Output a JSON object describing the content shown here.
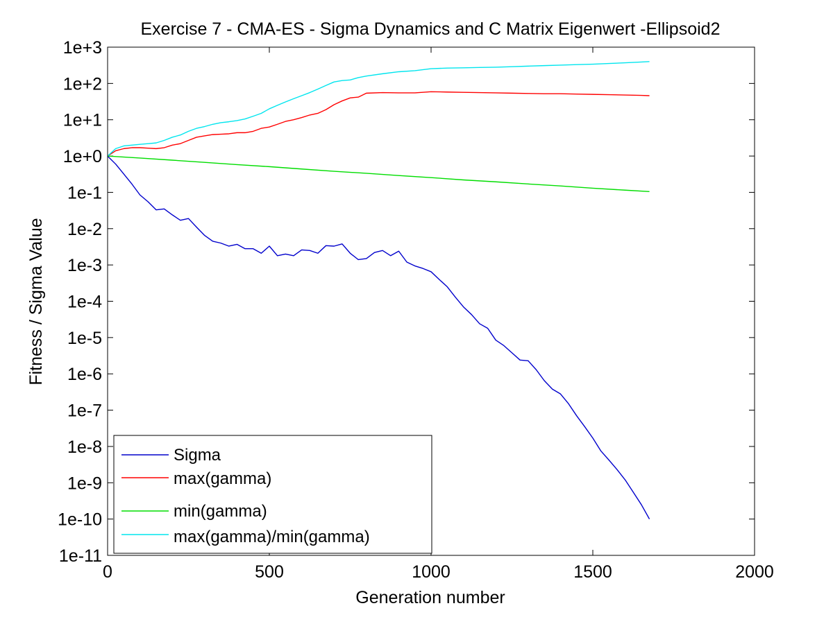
{
  "chart_data": {
    "type": "line",
    "title": "Exercise 7 - CMA-ES - Sigma Dynamics and C Matrix Eigenwert -Ellipsoid2",
    "xlabel": "Generation number",
    "ylabel": "Fitness / Sigma Value",
    "xlim": [
      0,
      2000
    ],
    "ylim": [
      1e-11,
      1000
    ],
    "yscale": "log",
    "grid": false,
    "legend_position": "bottom-left",
    "x_ticks": [
      0,
      500,
      1000,
      1500,
      2000
    ],
    "x_tick_labels": [
      "0",
      "500",
      "1000",
      "1500",
      "2000"
    ],
    "y_ticks": [
      1e-11,
      1e-10,
      1e-09,
      1e-08,
      1e-07,
      1e-06,
      1e-05,
      0.0001,
      0.001,
      0.01,
      0.1,
      1,
      10,
      100,
      1000
    ],
    "y_tick_labels": [
      "1e-11",
      "1e-10",
      "1e-9",
      "1e-8",
      "1e-7",
      "1e-6",
      "1e-5",
      "1e-4",
      "1e-3",
      "1e-2",
      "1e-1",
      "1e+0",
      "1e+1",
      "1e+2",
      "1e+3"
    ],
    "series": [
      {
        "name": "Sigma",
        "color": "#0000cc",
        "x": [
          0,
          25,
          50,
          75,
          100,
          125,
          150,
          175,
          200,
          225,
          250,
          275,
          300,
          325,
          350,
          375,
          400,
          425,
          450,
          475,
          500,
          525,
          550,
          575,
          600,
          625,
          650,
          675,
          700,
          725,
          750,
          775,
          800,
          825,
          850,
          875,
          900,
          925,
          950,
          975,
          1000,
          1025,
          1050,
          1075,
          1100,
          1125,
          1150,
          1175,
          1200,
          1225,
          1250,
          1275,
          1300,
          1325,
          1350,
          1375,
          1400,
          1425,
          1450,
          1475,
          1500,
          1525,
          1550,
          1575,
          1600,
          1625,
          1650,
          1675
        ],
        "y": [
          1,
          0.6,
          0.32,
          0.17,
          0.085,
          0.055,
          0.033,
          0.035,
          0.024,
          0.017,
          0.019,
          0.011,
          0.0065,
          0.0045,
          0.004,
          0.0033,
          0.0037,
          0.0028,
          0.0028,
          0.0021,
          0.0033,
          0.0018,
          0.002,
          0.0018,
          0.0026,
          0.0025,
          0.0021,
          0.0034,
          0.0033,
          0.0038,
          0.0021,
          0.0014,
          0.0015,
          0.0022,
          0.0025,
          0.0018,
          0.0024,
          0.0012,
          0.00094,
          0.0008,
          0.00065,
          0.0004,
          0.00025,
          0.00013,
          7e-05,
          4.3e-05,
          2.4e-05,
          1.8e-05,
          8.5e-06,
          6e-06,
          3.8e-06,
          2.4e-06,
          2.3e-06,
          1.3e-06,
          6.5e-07,
          3.8e-07,
          2.8e-07,
          1.5e-07,
          7e-08,
          3.5e-08,
          1.7e-08,
          7.5e-09,
          4.2e-09,
          2.3e-09,
          1.2e-09,
          5.5e-10,
          2.5e-10,
          1e-10
        ]
      },
      {
        "name": "max(gamma)",
        "color": "#ff0000",
        "x": [
          0,
          25,
          50,
          75,
          100,
          125,
          150,
          175,
          200,
          225,
          250,
          275,
          300,
          325,
          350,
          375,
          400,
          425,
          450,
          475,
          500,
          525,
          550,
          575,
          600,
          625,
          650,
          675,
          700,
          725,
          750,
          775,
          800,
          850,
          900,
          950,
          1000,
          1050,
          1100,
          1150,
          1200,
          1250,
          1300,
          1350,
          1400,
          1450,
          1500,
          1550,
          1600,
          1650,
          1675
        ],
        "y": [
          1,
          1.4,
          1.6,
          1.7,
          1.7,
          1.65,
          1.6,
          1.7,
          2.0,
          2.2,
          2.7,
          3.3,
          3.6,
          3.9,
          4.0,
          4.1,
          4.4,
          4.4,
          4.8,
          5.8,
          6.3,
          7.5,
          9.0,
          10.0,
          11.5,
          13.5,
          15,
          19,
          26,
          33,
          40,
          42,
          54,
          56,
          55,
          55,
          59,
          58,
          57,
          56,
          55,
          54,
          53,
          52,
          52,
          51,
          50,
          49,
          48,
          47,
          46
        ]
      },
      {
        "name": "min(gamma)",
        "color": "#00dd00",
        "x": [
          0,
          100,
          200,
          300,
          400,
          500,
          600,
          700,
          800,
          900,
          1000,
          1100,
          1200,
          1300,
          1400,
          1500,
          1600,
          1675
        ],
        "y": [
          1,
          0.88,
          0.77,
          0.67,
          0.58,
          0.51,
          0.44,
          0.38,
          0.335,
          0.29,
          0.255,
          0.22,
          0.195,
          0.17,
          0.15,
          0.13,
          0.115,
          0.105
        ]
      },
      {
        "name": "max(gamma)/min(gamma)",
        "color": "#00e5ee",
        "x": [
          0,
          25,
          50,
          75,
          100,
          125,
          150,
          175,
          200,
          225,
          250,
          275,
          300,
          325,
          350,
          375,
          400,
          425,
          450,
          475,
          500,
          525,
          550,
          575,
          600,
          625,
          650,
          675,
          700,
          725,
          750,
          775,
          800,
          850,
          900,
          950,
          1000,
          1050,
          1100,
          1150,
          1200,
          1250,
          1300,
          1350,
          1400,
          1450,
          1500,
          1550,
          1600,
          1650,
          1675
        ],
        "y": [
          1,
          1.6,
          1.9,
          2.0,
          2.1,
          2.2,
          2.3,
          2.7,
          3.3,
          3.8,
          4.8,
          5.8,
          6.5,
          7.5,
          8.3,
          8.8,
          9.5,
          10.5,
          12.5,
          15,
          20,
          25,
          31,
          38,
          46,
          56,
          70,
          88,
          110,
          120,
          125,
          145,
          160,
          185,
          210,
          225,
          255,
          265,
          270,
          275,
          280,
          290,
          300,
          310,
          320,
          330,
          340,
          355,
          370,
          390,
          400
        ]
      }
    ]
  }
}
